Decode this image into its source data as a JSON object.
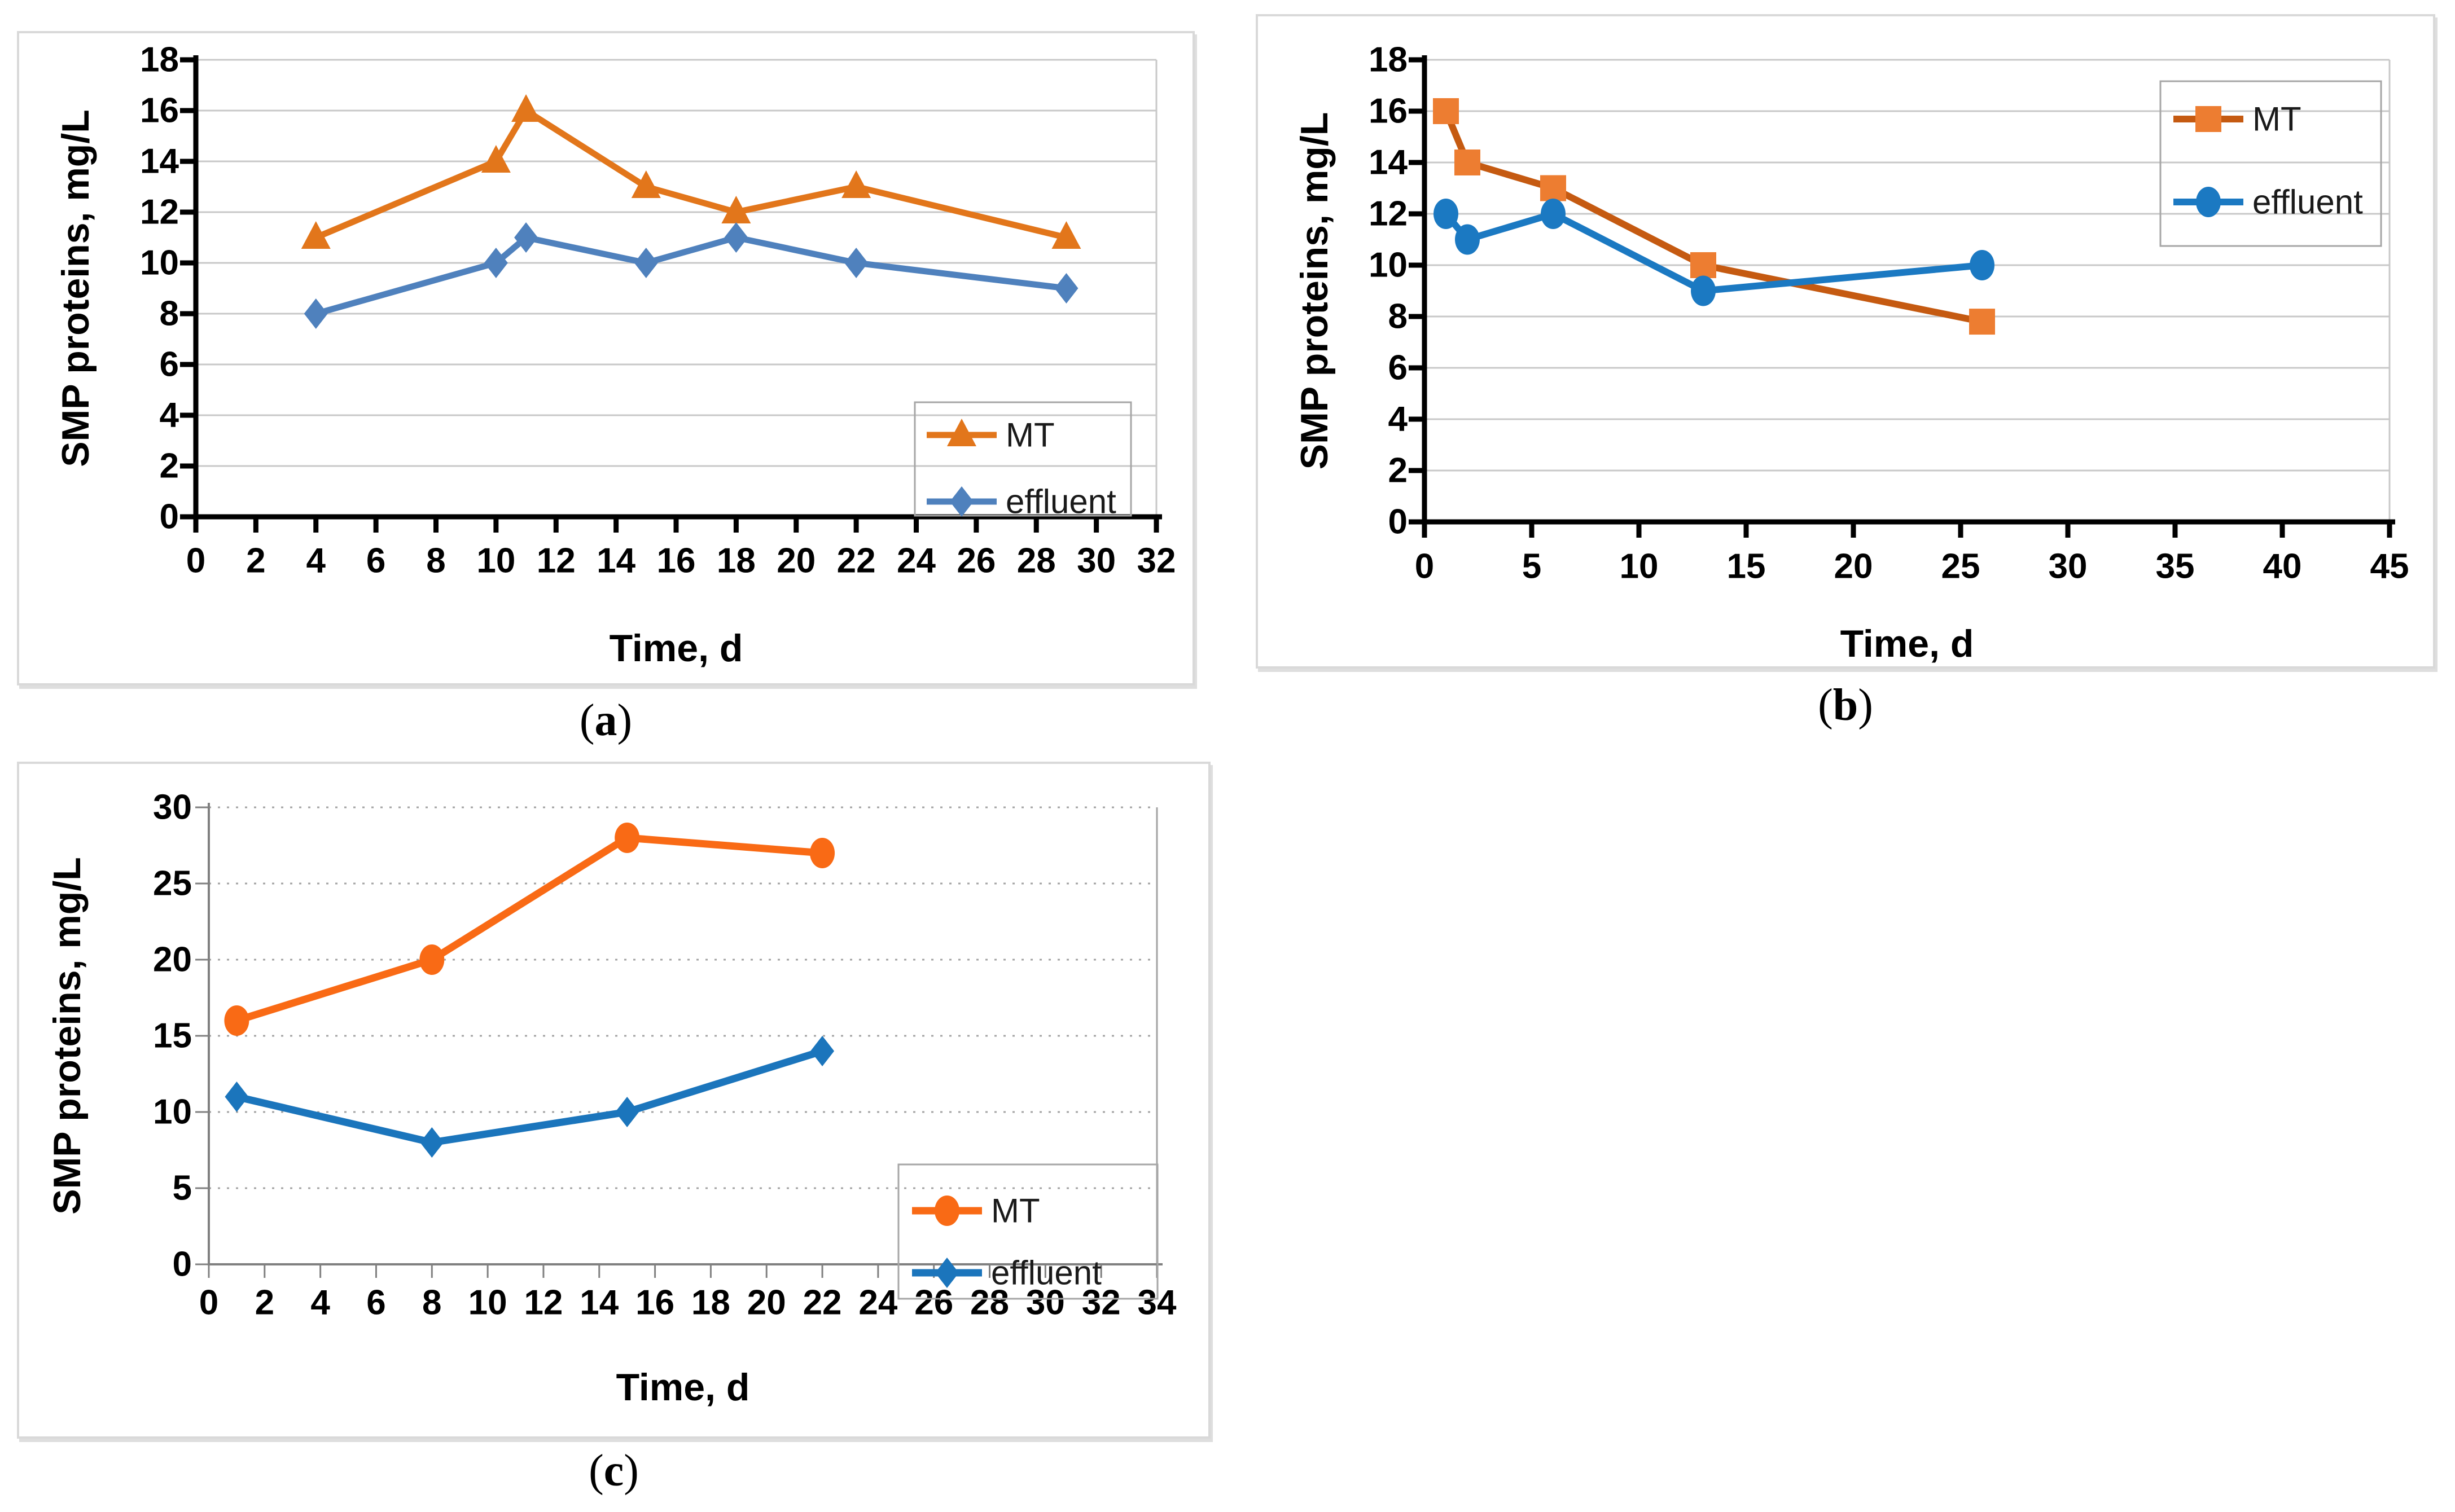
{
  "captions": {
    "a": {
      "pre": "(",
      "letter": "a",
      "post": ")"
    },
    "b": {
      "pre": "(",
      "letter": "b",
      "post": ")"
    },
    "c": {
      "pre": "(",
      "letter": "c",
      "post": ")"
    }
  },
  "chart_data": [
    {
      "id": "a",
      "type": "line",
      "title": "",
      "xlabel": "Time, d",
      "ylabel": "SMP proteins, mg/L",
      "xlim": [
        0,
        32
      ],
      "ylim": [
        0,
        18
      ],
      "xticks": [
        0,
        2,
        4,
        6,
        8,
        10,
        12,
        14,
        16,
        18,
        20,
        22,
        24,
        26,
        28,
        30,
        32
      ],
      "yticks": [
        0,
        2,
        4,
        6,
        8,
        10,
        12,
        14,
        16,
        18
      ],
      "grid": "horizontal-solid",
      "legend_position": "bottom-right-inside",
      "series": [
        {
          "name": "MT",
          "color": "#E2761B",
          "marker": "triangle",
          "x": [
            4,
            10,
            11,
            15,
            18,
            22,
            29
          ],
          "y": [
            11,
            14,
            16,
            13,
            12,
            13,
            11
          ]
        },
        {
          "name": "effluent",
          "color": "#4F81BD",
          "marker": "diamond",
          "x": [
            4,
            10,
            11,
            15,
            18,
            22,
            29
          ],
          "y": [
            8,
            10,
            11,
            10,
            11,
            10,
            9
          ]
        }
      ]
    },
    {
      "id": "b",
      "type": "line",
      "title": "",
      "xlabel": "Time, d",
      "ylabel": "SMP proteins, mg/L",
      "xlim": [
        0,
        45
      ],
      "ylim": [
        0,
        18
      ],
      "xticks": [
        0,
        5,
        10,
        15,
        20,
        25,
        30,
        35,
        40,
        45
      ],
      "yticks": [
        0,
        2,
        4,
        6,
        8,
        10,
        12,
        14,
        16,
        18
      ],
      "grid": "horizontal-solid",
      "legend_position": "top-right-inside",
      "series": [
        {
          "name": "MT",
          "color": "#C55A11",
          "marker_color": "#ED7D31",
          "marker": "square",
          "x": [
            1,
            2,
            6,
            13,
            26
          ],
          "y": [
            16,
            14,
            13,
            10,
            7.8
          ]
        },
        {
          "name": "effluent",
          "color": "#1B79C2",
          "marker": "circle",
          "x": [
            1,
            2,
            6,
            13,
            26
          ],
          "y": [
            12,
            11,
            12,
            9,
            10
          ]
        }
      ]
    },
    {
      "id": "c",
      "type": "line",
      "title": "",
      "xlabel": "Time, d",
      "ylabel": "SMP proteins, mg/L",
      "xlim": [
        0,
        34
      ],
      "ylim": [
        0,
        30
      ],
      "xticks": [
        0,
        2,
        4,
        6,
        8,
        10,
        12,
        14,
        16,
        18,
        20,
        22,
        24,
        26,
        28,
        30,
        32,
        34
      ],
      "yticks": [
        0,
        5,
        10,
        15,
        20,
        25,
        30
      ],
      "grid": "horizontal-dashed",
      "legend_position": "bottom-right-inside",
      "series": [
        {
          "name": "MT",
          "color": "#F96A15",
          "marker": "circle",
          "x": [
            1,
            8,
            15,
            22
          ],
          "y": [
            16,
            20,
            28,
            27
          ]
        },
        {
          "name": "effluent",
          "color": "#1B75BC",
          "marker": "diamond",
          "x": [
            1,
            8,
            15,
            22
          ],
          "y": [
            11,
            8,
            10,
            14
          ]
        }
      ]
    }
  ]
}
